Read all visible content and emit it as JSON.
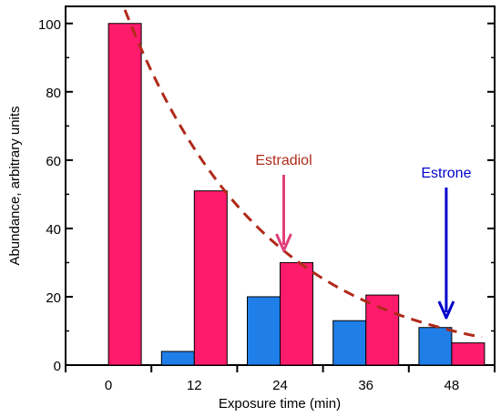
{
  "chart_data": {
    "type": "bar",
    "title": "",
    "xlabel": "Exposure time (min)",
    "ylabel": "Abundance, arbitrary units",
    "categories": [
      "0",
      "12",
      "24",
      "36",
      "48"
    ],
    "ylim": [
      0,
      105
    ],
    "yticks": [
      0,
      20,
      40,
      60,
      80,
      100
    ],
    "grid": false,
    "legend": "none",
    "series": [
      {
        "values": [
          null,
          4,
          20,
          13,
          11
        ],
        "color": "#1f7ee8"
      },
      {
        "values": [
          100,
          51,
          30,
          20.5,
          6.5
        ],
        "color": "#ff1b6b"
      }
    ],
    "trend_line": {
      "style": "dashed",
      "color": "#b02a1a",
      "shape": "exponential-decay"
    },
    "annotations": [
      {
        "text": "Estradiol",
        "color": "#b02a1a",
        "arrow_color": "#e0407a",
        "target_category": "24"
      },
      {
        "text": "Estrone",
        "color": "#0000cc",
        "arrow_color": "#0000cc",
        "target_category": "48"
      }
    ]
  }
}
